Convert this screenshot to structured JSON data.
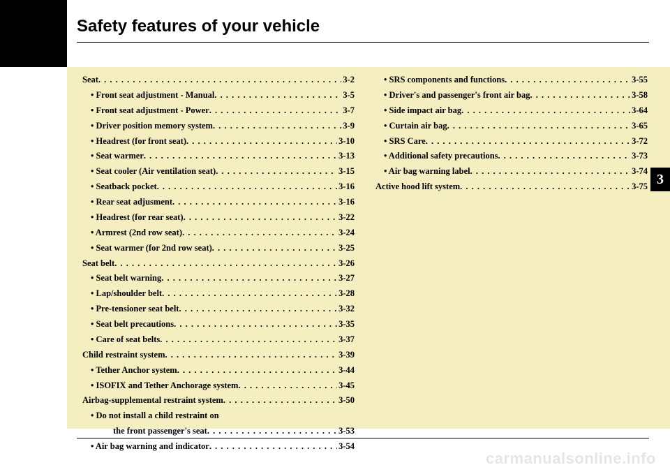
{
  "header": {
    "title": "Safety features of your vehicle"
  },
  "chapter": "3",
  "watermark": "carmanualsonline.info",
  "col1": [
    {
      "label": "Seat",
      "page": "3-2",
      "level": 0
    },
    {
      "label": "• Front seat adjustment - Manual",
      "page": "3-5",
      "level": 1
    },
    {
      "label": "• Front seat adjustment - Power",
      "page": "3-7",
      "level": 1
    },
    {
      "label": "• Driver position memory system ",
      "page": "3-9",
      "level": 1
    },
    {
      "label": "• Headrest (for front seat)",
      "page": "3-10",
      "level": 1
    },
    {
      "label": "• Seat warmer",
      "page": "3-13",
      "level": 1
    },
    {
      "label": "• Seat cooler (Air ventilation seat)",
      "page": "3-15",
      "level": 1
    },
    {
      "label": "• Seatback pocket",
      "page": "3-16",
      "level": 1
    },
    {
      "label": "• Rear seat adjusment",
      "page": "3-16",
      "level": 1
    },
    {
      "label": "• Headrest (for rear seat)",
      "page": "3-22",
      "level": 1
    },
    {
      "label": "• Armrest (2nd row seat)",
      "page": "3-24",
      "level": 1
    },
    {
      "label": "• Seat warmer (for 2nd row seat)",
      "page": "3-25",
      "level": 1
    },
    {
      "label": "Seat belt",
      "page": "3-26",
      "level": 0
    },
    {
      "label": "• Seat belt warning",
      "page": "3-27",
      "level": 1
    },
    {
      "label": "• Lap/shoulder belt",
      "page": "3-28",
      "level": 1
    },
    {
      "label": "• Pre-tensioner seat belt",
      "page": "3-32",
      "level": 1
    },
    {
      "label": "• Seat belt precautions",
      "page": "3-35",
      "level": 1
    },
    {
      "label": "• Care of seat belts ",
      "page": "3-37",
      "level": 1
    },
    {
      "label": "Child restraint system",
      "page": "3-39",
      "level": 0
    },
    {
      "label": "• Tether Anchor system",
      "page": "3-44",
      "level": 1
    },
    {
      "label": "• ISOFIX and Tether Anchorage system",
      "page": "3-45",
      "level": 1
    },
    {
      "label": "Airbag-supplemental restraint system",
      "page": "3-50",
      "level": 0
    },
    {
      "label": "• Do not install a child restraint on",
      "page": "",
      "level": 1,
      "nodots": true
    },
    {
      "label": "the front passenger's seat ",
      "page": "3-53",
      "level": 2
    },
    {
      "label": "• Air bag warning and indicator",
      "page": "3-54",
      "level": 1
    }
  ],
  "col2": [
    {
      "label": "• SRS components and functions",
      "page": "3-55",
      "level": 1
    },
    {
      "label": "• Driver's and passenger's front air bag",
      "page": "3-58",
      "level": 1
    },
    {
      "label": "• Side impact air bag",
      "page": "3-64",
      "level": 1
    },
    {
      "label": "• Curtain air bag",
      "page": "3-65",
      "level": 1
    },
    {
      "label": "• SRS Care",
      "page": "3-72",
      "level": 1
    },
    {
      "label": "• Additional safety precautions",
      "page": "3-73",
      "level": 1
    },
    {
      "label": "• Air bag warning label",
      "page": "3-74",
      "level": 1
    },
    {
      "label": "Active hood lift system",
      "page": "3-75",
      "level": 0
    }
  ]
}
